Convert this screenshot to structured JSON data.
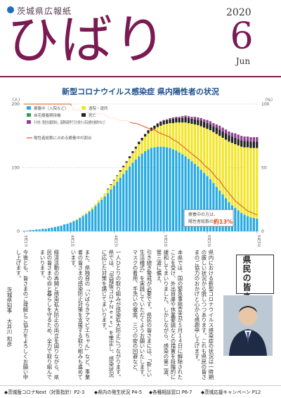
{
  "masthead": {
    "subtitle": "茨城県広報紙",
    "title": "ひばり",
    "year": "2020",
    "month": "6",
    "month_abbr": "Jun"
  },
  "chart_title": "新型コロナウイルス感染症 県内陽性者の状況",
  "chart_data": {
    "type": "bar",
    "title": "新型コロナウイルス感染症 県内陽性者の状況",
    "left_axis_unit": "（人）",
    "right_axis_unit": "（%）",
    "ylim": [
      0,
      200
    ],
    "y2lim": [
      0,
      100
    ],
    "y_ticks": [
      "0",
      "100",
      "200"
    ],
    "y2_ticks": [
      "0",
      "50",
      "100"
    ],
    "x_tick_labels": [
      "3月17日",
      "4月1日",
      "4月15日",
      "5月1日",
      "5月15日",
      "5月31日"
    ],
    "x_tick_days": [
      0,
      15,
      29,
      45,
      59,
      75
    ],
    "days": 76,
    "legend": [
      {
        "name": "療養中（入院など）",
        "color": "#29abe2"
      },
      {
        "name": "退院・退所",
        "color": "#f2e529"
      },
      {
        "name": "自宅療養期待機",
        "color": "#2e9e4f"
      },
      {
        "name": "死亡",
        "color": "#222222"
      },
      {
        "name": "その他（陰性化確認後も、基礎疾患等で引き続き入院治療を継続中など）",
        "color": "#8e3f8f"
      },
      {
        "name": "陽性者総数に占める療養中の割合",
        "color": "#e0521b"
      }
    ],
    "series": [
      {
        "name": "療養中（入院など）",
        "values": [
          1,
          1,
          2,
          2,
          3,
          3,
          4,
          4,
          5,
          6,
          7,
          8,
          9,
          11,
          12,
          14,
          16,
          18,
          21,
          24,
          27,
          31,
          35,
          40,
          45,
          50,
          55,
          60,
          66,
          72,
          78,
          84,
          90,
          96,
          102,
          108,
          113,
          118,
          122,
          126,
          129,
          131,
          132,
          133,
          133,
          133,
          132,
          131,
          129,
          127,
          124,
          121,
          118,
          114,
          110,
          106,
          102,
          97,
          92,
          87,
          82,
          76,
          70,
          64,
          58,
          52,
          46,
          41,
          37,
          33,
          29,
          26,
          24,
          22,
          21,
          20
        ]
      },
      {
        "name": "退院・退所",
        "values": [
          0,
          0,
          0,
          0,
          0,
          0,
          0,
          0,
          0,
          0,
          0,
          0,
          0,
          0,
          0,
          0,
          1,
          1,
          1,
          2,
          2,
          2,
          3,
          3,
          4,
          4,
          5,
          6,
          7,
          8,
          9,
          10,
          11,
          12,
          13,
          15,
          17,
          19,
          21,
          23,
          25,
          27,
          29,
          31,
          33,
          35,
          37,
          39,
          41,
          44,
          47,
          50,
          53,
          56,
          59,
          62,
          65,
          68,
          71,
          74,
          77,
          80,
          83,
          86,
          89,
          92,
          95,
          98,
          100,
          102,
          104,
          106,
          108,
          109,
          110,
          111
        ]
      },
      {
        "name": "死亡",
        "values": [
          0,
          0,
          0,
          0,
          0,
          0,
          0,
          0,
          0,
          0,
          0,
          0,
          0,
          0,
          0,
          0,
          0,
          0,
          0,
          0,
          0,
          0,
          0,
          0,
          0,
          0,
          0,
          1,
          1,
          1,
          1,
          2,
          2,
          2,
          3,
          3,
          3,
          4,
          4,
          4,
          5,
          5,
          5,
          5,
          6,
          6,
          6,
          6,
          7,
          7,
          7,
          7,
          8,
          8,
          8,
          8,
          8,
          9,
          9,
          9,
          9,
          9,
          10,
          10,
          10,
          10,
          10,
          10,
          10,
          10,
          10,
          10,
          10,
          10,
          10,
          10
        ]
      },
      {
        "name": "その他（陰性化確認後も、基礎疾患等で引き続き入院治療を継続中など）",
        "values": [
          0,
          0,
          0,
          0,
          0,
          0,
          0,
          0,
          0,
          0,
          0,
          0,
          0,
          0,
          0,
          0,
          0,
          0,
          0,
          0,
          0,
          0,
          0,
          0,
          0,
          0,
          0,
          0,
          0,
          0,
          0,
          0,
          0,
          0,
          0,
          0,
          0,
          0,
          0,
          0,
          0,
          0,
          0,
          1,
          1,
          1,
          1,
          2,
          2,
          2,
          2,
          3,
          3,
          3,
          3,
          4,
          4,
          4,
          4,
          5,
          5,
          5,
          5,
          6,
          6,
          6,
          6,
          6,
          7,
          7,
          7,
          7,
          7,
          7,
          7,
          7
        ]
      }
    ],
    "ratio_line": {
      "name": "陽性者総数に占める療養中の割合",
      "values": [
        100,
        100,
        100,
        100,
        100,
        100,
        100,
        100,
        100,
        100,
        100,
        100,
        100,
        100,
        100,
        100,
        95,
        96,
        95,
        93,
        93,
        94,
        92,
        93,
        92,
        93,
        92,
        90,
        89,
        89,
        88,
        87,
        87,
        87,
        86,
        85,
        85,
        84,
        83,
        82,
        81,
        80,
        80,
        78,
        77,
        76,
        75,
        74,
        72,
        71,
        69,
        67,
        65,
        63,
        61,
        59,
        57,
        55,
        52,
        50,
        48,
        45,
        42,
        40,
        36,
        33,
        30,
        27,
        24,
        22,
        20,
        18,
        16,
        15,
        14,
        13
      ]
    },
    "annotation": {
      "text_prefix": "療養中の方は、",
      "text_line2": "陽性者総数の",
      "value": "約13%"
    }
  },
  "greeting": {
    "heading": "県民の皆さまへ",
    "columns": [
      "県内における新型コロナウイルス感染症の状況は一時期の厳しい状況から脱しつつあります。これも県民の皆さまのご協力のおかげと心から感謝申し上げます。",
      "本県では、国の緊急事態宣言が５月１４日に解除されたことを受け、外出自粛や休業要請などの措置を段階的に緩和してまいりました。しかしながら、感染の第二波、第三波に備え、",
      "引き続き警戒が必要です。県民の皆さまには、「新しい生活様式」を実践していただくようお願いいたします。マスクの着用、手洗いの徹底、三つの密の回避など、",
      "一人ひとりの取り組みが感染拡大防止につながります。県では、「茨城版コロナＮｅｘｔ」を策定し、感染状況に応じた対策を講じてまいります。",
      "また、県独自の「いばらきアマビエちゃん」など、事業者の皆さまの感染防止対策を支援する取り組みも進めています。",
      "経済活動の再開と感染拡大防止の両立を図りながら、県民の皆さまの命と暮らしを守るため、全力で取り組んでまいります。",
      "今後とも、皆さまのご理解とご協力をよろしくお願い申し上げます。"
    ],
    "signature": "茨城県知事　大井川 和彦"
  },
  "footer": {
    "items": [
      "◆茨城版コロナNext（対策指針）P2-3",
      "◆県内の発生状況 P4-5",
      "◆各種相談窓口 P6-7",
      "◆茨城応援キャンペーン P12"
    ]
  }
}
